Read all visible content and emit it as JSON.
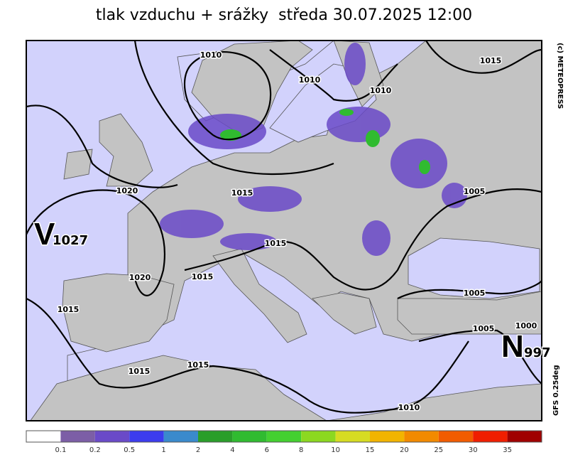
{
  "header": {
    "title": "tlak vzduchu + srážky  středa 30.07.2025 12:00"
  },
  "credits": {
    "copyright": "(c) METEOPRESS",
    "model": "GFS 0.25deg"
  },
  "centers": [
    {
      "letter": "V",
      "value": 1027
    },
    {
      "letter": "N",
      "value": 997
    }
  ],
  "isobar_labels": [
    1010,
    1010,
    1010,
    1015,
    1020,
    1015,
    1005,
    1015,
    1020,
    1015,
    1015,
    1005,
    1005,
    1000,
    1015,
    1015,
    1010
  ],
  "legend": {
    "values": [
      0.1,
      0.2,
      0.5,
      1,
      2,
      4,
      6,
      8,
      10,
      15,
      20,
      25,
      30,
      35
    ],
    "colors": [
      "#ffffff",
      "#7c5ea6",
      "#6a4ac8",
      "#3c3cee",
      "#3a8acc",
      "#2a9e2a",
      "#30bb30",
      "#44d030",
      "#8cd820",
      "#d6dc22",
      "#f2b400",
      "#f28a00",
      "#f25c00",
      "#f01e00",
      "#a00000"
    ]
  }
}
